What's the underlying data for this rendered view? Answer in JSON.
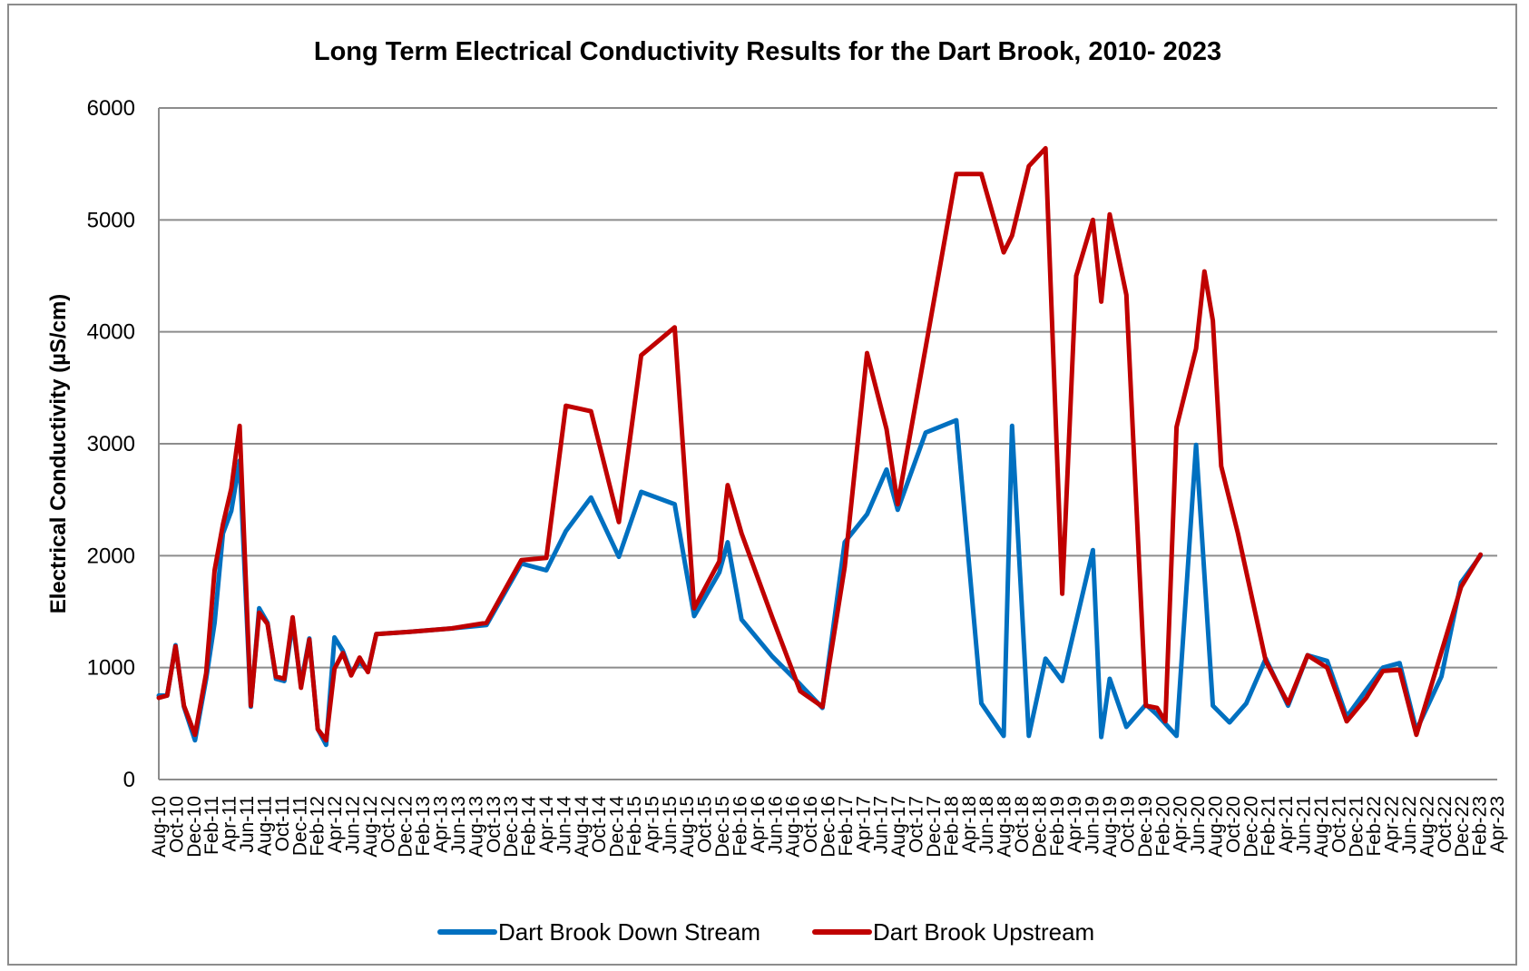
{
  "chart_data": {
    "type": "line",
    "title": "Long Term Electrical Conductivity Results for the Dart Brook, 2010- 2023",
    "xlabel": "",
    "ylabel": "Electrical Conductivity (µS/cm)",
    "ylim": [
      0,
      6000
    ],
    "yticks": [
      "0",
      "1000",
      "2000",
      "3000",
      "4000",
      "5000",
      "6000"
    ],
    "grid": "horizontal",
    "legend_position": "bottom",
    "categories": [
      "Aug-10",
      "Oct-10",
      "Dec-10",
      "Feb-11",
      "Apr-11",
      "Jun-11",
      "Aug-11",
      "Oct-11",
      "Dec-11",
      "Feb-12",
      "Apr-12",
      "Jun-12",
      "Aug-12",
      "Oct-12",
      "Dec-12",
      "Feb-13",
      "Apr-13",
      "Jun-13",
      "Aug-13",
      "Oct-13",
      "Dec-13",
      "Feb-14",
      "Apr-14",
      "Jun-14",
      "Aug-14",
      "Oct-14",
      "Dec-14",
      "Feb-15",
      "Apr-15",
      "Jun-15",
      "Aug-15",
      "Oct-15",
      "Dec-15",
      "Feb-16",
      "Apr-16",
      "Jun-16",
      "Aug-16",
      "Oct-16",
      "Dec-16",
      "Feb-17",
      "Apr-17",
      "Jun-17",
      "Aug-17",
      "Oct-17",
      "Dec-17",
      "Feb-18",
      "Apr-18",
      "Jun-18",
      "Aug-18",
      "Oct-18",
      "Dec-18",
      "Feb-19",
      "Apr-19",
      "Jun-19",
      "Aug-19",
      "Oct-19",
      "Dec-19",
      "Feb-20",
      "Apr-20",
      "Jun-20",
      "Aug-20",
      "Oct-20",
      "Dec-20",
      "Feb-21",
      "Apr-21",
      "Jun-21",
      "Aug-21",
      "Oct-21",
      "Dec-21",
      "Feb-22",
      "Apr-22",
      "Jun-22",
      "Aug-22",
      "Oct-22",
      "Dec-22",
      "Feb-23",
      "Apr-23"
    ],
    "x_range": [
      0,
      96
    ],
    "series": [
      {
        "name": "Dart Brook Down Stream",
        "color": "#0070C0",
        "points": [
          [
            0,
            750
          ],
          [
            0.6,
            750
          ],
          [
            1.2,
            1200
          ],
          [
            1.8,
            650
          ],
          [
            2.6,
            350
          ],
          [
            3.4,
            900
          ],
          [
            4.0,
            1400
          ],
          [
            4.6,
            2200
          ],
          [
            5.2,
            2400
          ],
          [
            5.8,
            2850
          ],
          [
            6.6,
            650
          ],
          [
            7.2,
            1530
          ],
          [
            7.8,
            1400
          ],
          [
            8.4,
            900
          ],
          [
            9.0,
            880
          ],
          [
            9.6,
            1400
          ],
          [
            10.2,
            850
          ],
          [
            10.8,
            1260
          ],
          [
            11.4,
            450
          ],
          [
            12.0,
            310
          ],
          [
            12.6,
            1270
          ],
          [
            13.2,
            1150
          ],
          [
            13.8,
            950
          ],
          [
            14.4,
            1050
          ],
          [
            15.0,
            970
          ],
          [
            15.6,
            1300
          ],
          [
            18.0,
            1320
          ],
          [
            21.0,
            1350
          ],
          [
            23.5,
            1380
          ],
          [
            26.0,
            1930
          ],
          [
            27.8,
            1870
          ],
          [
            29.2,
            2220
          ],
          [
            31.0,
            2520
          ],
          [
            33.0,
            1990
          ],
          [
            34.6,
            2570
          ],
          [
            37.0,
            2460
          ],
          [
            38.4,
            1460
          ],
          [
            40.2,
            1850
          ],
          [
            40.8,
            2120
          ],
          [
            41.8,
            1430
          ],
          [
            44.0,
            1100
          ],
          [
            46.0,
            850
          ],
          [
            47.6,
            640
          ],
          [
            49.2,
            2120
          ],
          [
            50.8,
            2370
          ],
          [
            52.2,
            2770
          ],
          [
            53.0,
            2410
          ],
          [
            55.0,
            3100
          ],
          [
            57.2,
            3210
          ],
          [
            59.0,
            680
          ],
          [
            60.6,
            390
          ],
          [
            61.2,
            3160
          ],
          [
            62.4,
            390
          ],
          [
            63.6,
            1080
          ],
          [
            64.8,
            880
          ],
          [
            67.0,
            2050
          ],
          [
            67.6,
            380
          ],
          [
            68.2,
            900
          ],
          [
            69.4,
            470
          ],
          [
            70.8,
            670
          ],
          [
            71.6,
            580
          ],
          [
            73.0,
            390
          ],
          [
            74.4,
            2990
          ],
          [
            75.6,
            660
          ],
          [
            76.8,
            510
          ],
          [
            78.0,
            680
          ],
          [
            79.4,
            1080
          ],
          [
            81.0,
            660
          ],
          [
            82.4,
            1110
          ],
          [
            83.8,
            1060
          ],
          [
            85.2,
            560
          ],
          [
            86.6,
            800
          ],
          [
            87.8,
            1000
          ],
          [
            89.0,
            1040
          ],
          [
            90.2,
            440
          ],
          [
            92.0,
            920
          ],
          [
            93.4,
            1760
          ],
          [
            94.8,
            2000
          ]
        ]
      },
      {
        "name": "Dart Brook Upstream",
        "color": "#C00000",
        "points": [
          [
            0,
            730
          ],
          [
            0.6,
            750
          ],
          [
            1.2,
            1190
          ],
          [
            1.8,
            660
          ],
          [
            2.6,
            400
          ],
          [
            3.4,
            950
          ],
          [
            4.0,
            1870
          ],
          [
            4.6,
            2280
          ],
          [
            5.2,
            2600
          ],
          [
            5.8,
            3160
          ],
          [
            6.6,
            660
          ],
          [
            7.2,
            1490
          ],
          [
            7.8,
            1390
          ],
          [
            8.4,
            920
          ],
          [
            9.0,
            900
          ],
          [
            9.6,
            1450
          ],
          [
            10.2,
            820
          ],
          [
            10.8,
            1250
          ],
          [
            11.4,
            450
          ],
          [
            12.0,
            350
          ],
          [
            12.6,
            990
          ],
          [
            13.2,
            1130
          ],
          [
            13.8,
            930
          ],
          [
            14.4,
            1090
          ],
          [
            15.0,
            960
          ],
          [
            15.6,
            1300
          ],
          [
            18.0,
            1320
          ],
          [
            21.0,
            1350
          ],
          [
            23.5,
            1400
          ],
          [
            26.0,
            1960
          ],
          [
            27.8,
            1980
          ],
          [
            29.2,
            3340
          ],
          [
            31.0,
            3290
          ],
          [
            33.0,
            2300
          ],
          [
            34.6,
            3790
          ],
          [
            37.0,
            4040
          ],
          [
            38.4,
            1530
          ],
          [
            40.2,
            1950
          ],
          [
            40.8,
            2630
          ],
          [
            41.8,
            2200
          ],
          [
            44.0,
            1450
          ],
          [
            46.0,
            790
          ],
          [
            47.6,
            650
          ],
          [
            49.2,
            1900
          ],
          [
            50.8,
            3810
          ],
          [
            52.2,
            3130
          ],
          [
            53.0,
            2460
          ],
          [
            55.0,
            3860
          ],
          [
            57.2,
            5410
          ],
          [
            59.0,
            5410
          ],
          [
            60.6,
            4710
          ],
          [
            61.2,
            4860
          ],
          [
            62.4,
            5480
          ],
          [
            63.6,
            5640
          ],
          [
            64.8,
            1660
          ],
          [
            65.8,
            4500
          ],
          [
            67.0,
            5000
          ],
          [
            67.6,
            4270
          ],
          [
            68.2,
            5050
          ],
          [
            69.4,
            4330
          ],
          [
            70.8,
            660
          ],
          [
            71.6,
            640
          ],
          [
            72.2,
            520
          ],
          [
            73.0,
            3150
          ],
          [
            74.4,
            3850
          ],
          [
            75.0,
            4540
          ],
          [
            75.6,
            4100
          ],
          [
            76.2,
            2800
          ],
          [
            77.4,
            2200
          ],
          [
            79.4,
            1060
          ],
          [
            81.0,
            680
          ],
          [
            82.4,
            1110
          ],
          [
            83.8,
            1000
          ],
          [
            85.2,
            520
          ],
          [
            86.6,
            730
          ],
          [
            87.8,
            970
          ],
          [
            89.0,
            980
          ],
          [
            90.2,
            400
          ],
          [
            93.4,
            1720
          ],
          [
            94.8,
            2010
          ]
        ]
      }
    ]
  }
}
